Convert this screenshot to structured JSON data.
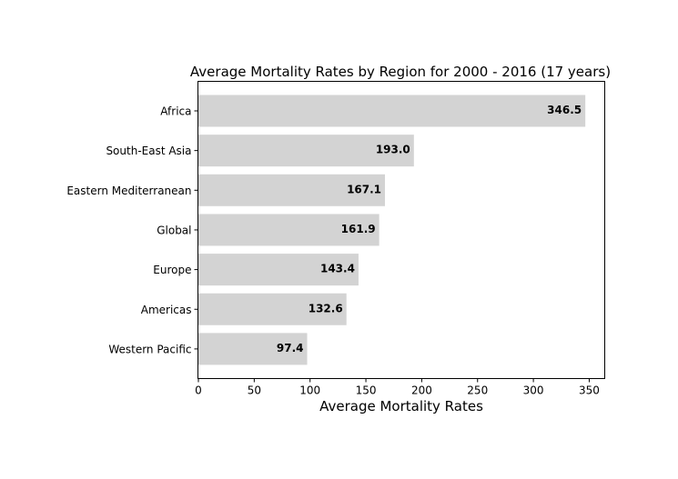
{
  "chart_data": {
    "type": "bar",
    "orientation": "horizontal",
    "title": "Average Mortality Rates by Region for 2000 - 2016 (17 years)",
    "xlabel": "Average Mortality Rates",
    "ylabel": "",
    "categories": [
      "Africa",
      "South-East Asia",
      "Eastern Mediterranean",
      "Global",
      "Europe",
      "Americas",
      "Western Pacific"
    ],
    "values": [
      346.5,
      193.0,
      167.1,
      161.9,
      143.4,
      132.6,
      97.4
    ],
    "data_labels": [
      "346.5",
      "193.0",
      "167.1",
      "161.9",
      "143.4",
      "132.6",
      "97.4"
    ],
    "xlim": [
      0,
      364
    ],
    "xticks": [
      0,
      50,
      100,
      150,
      200,
      250,
      300,
      350
    ],
    "grid": false,
    "legend": "none",
    "bar_color": "#d3d3d3"
  }
}
